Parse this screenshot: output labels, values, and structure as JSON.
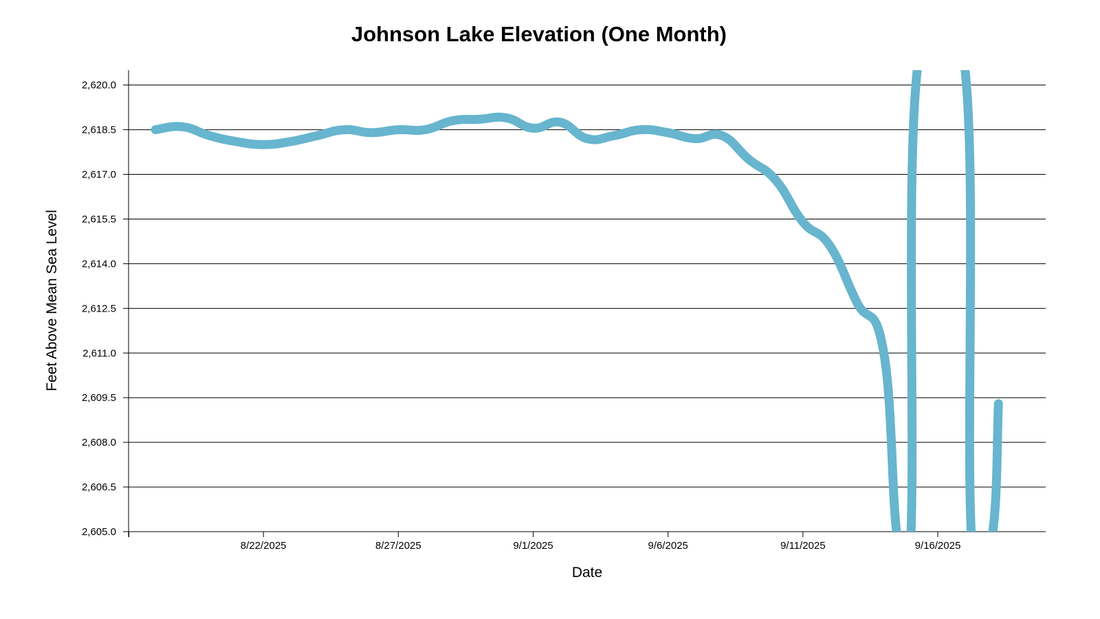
{
  "chart_data": {
    "type": "line",
    "title": "Johnson Lake Elevation (One Month)",
    "xlabel": "Date",
    "ylabel": "Feet Above Mean Sea Level",
    "ylim": [
      2605.0,
      2620.5
    ],
    "xlim": [
      "2025-08-17",
      "2025-09-20"
    ],
    "x_tick_values": [
      "2025-08-22",
      "2025-08-27",
      "2025-09-01",
      "2025-09-06",
      "2025-09-11",
      "2025-09-16"
    ],
    "x_tick_labels": [
      "8/22/2025",
      "8/27/2025",
      "9/1/2025",
      "9/6/2025",
      "9/11/2025",
      "9/16/2025"
    ],
    "y_ticks": [
      2605.0,
      2606.5,
      2608.0,
      2609.5,
      2611.0,
      2612.5,
      2614.0,
      2615.5,
      2617.0,
      2618.5,
      2620.0
    ],
    "y_tick_labels": [
      "2,605.0",
      "2,606.5",
      "2,608.0",
      "2,609.5",
      "2,611.0",
      "2,612.5",
      "2,614.0",
      "2,615.5",
      "2,617.0",
      "2,618.5",
      "2,620.0"
    ],
    "grid": "horizontal",
    "series_color": "#67b5ce",
    "series": [
      {
        "name": "",
        "points": [
          [
            "2025-08-18",
            2618.5
          ],
          [
            "2025-08-19",
            2618.6
          ],
          [
            "2025-08-20",
            2618.3
          ],
          [
            "2025-08-21",
            2618.1
          ],
          [
            "2025-08-22",
            2618.0
          ],
          [
            "2025-08-23",
            2618.1
          ],
          [
            "2025-08-24",
            2618.3
          ],
          [
            "2025-08-25",
            2618.5
          ],
          [
            "2025-08-26",
            2618.4
          ],
          [
            "2025-08-27",
            2618.5
          ],
          [
            "2025-08-28",
            2618.5
          ],
          [
            "2025-08-29",
            2618.8
          ],
          [
            "2025-08-30",
            2618.85
          ],
          [
            "2025-08-31",
            2618.9
          ],
          [
            "2025-09-01",
            2618.55
          ],
          [
            "2025-09-02",
            2618.75
          ],
          [
            "2025-09-03",
            2618.2
          ],
          [
            "2025-09-04",
            2618.3
          ],
          [
            "2025-09-05",
            2618.5
          ],
          [
            "2025-09-06",
            2618.4
          ],
          [
            "2025-09-07",
            2618.2
          ],
          [
            "2025-09-08",
            2618.3
          ],
          [
            "2025-09-09",
            2617.5
          ],
          [
            "2025-09-10",
            2616.8
          ],
          [
            "2025-09-11",
            2615.4
          ],
          [
            "2025-09-12",
            2614.6
          ],
          [
            "2025-09-13",
            2612.7
          ],
          [
            "2025-09-14",
            2611.0
          ],
          [
            "2025-09-14T12:00",
            2604.8
          ],
          [
            "2025-09-15",
            2604.8
          ],
          [
            "2025-09-15T06:00",
            2620.6
          ],
          [
            "2025-09-17",
            2620.6
          ],
          [
            "2025-09-17T06:00",
            2604.8
          ],
          [
            "2025-09-18",
            2604.8
          ],
          [
            "2025-09-18T06:00",
            2609.3
          ]
        ]
      }
    ]
  }
}
